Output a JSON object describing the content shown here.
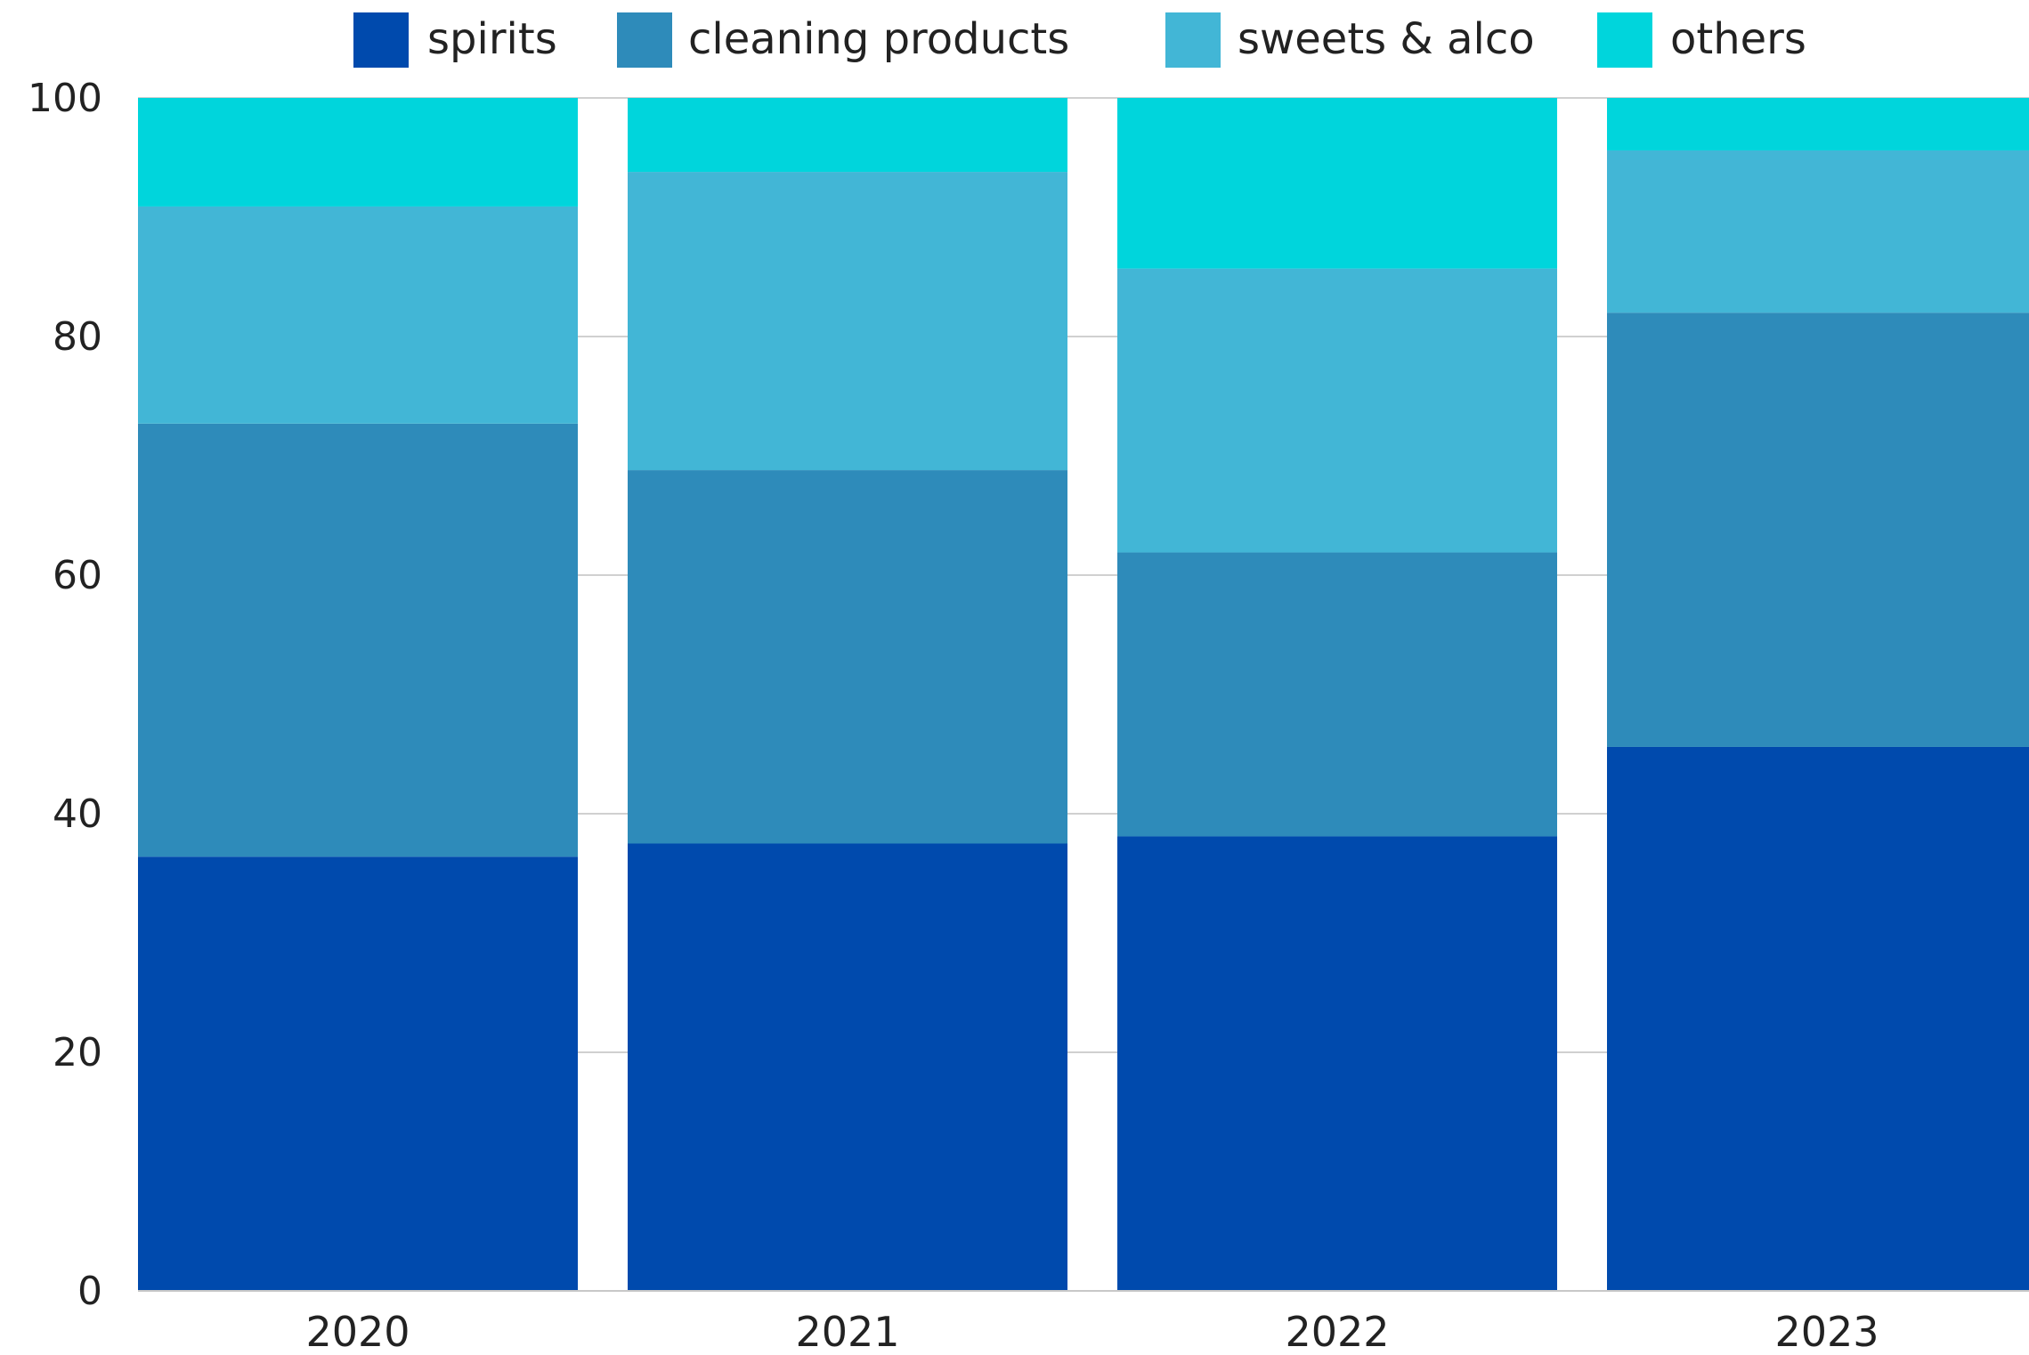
{
  "chart_data": {
    "type": "bar",
    "stacked": true,
    "categories": [
      "2020",
      "2021",
      "2022",
      "2023"
    ],
    "series": [
      {
        "name": "spirits",
        "color": "#004aad",
        "values": [
          36.4,
          37.5,
          38.1,
          45.6
        ]
      },
      {
        "name": "cleaning products",
        "color": "#2e8bba",
        "values": [
          36.3,
          31.3,
          23.8,
          36.4
        ]
      },
      {
        "name": "sweets & alco",
        "color": "#42b6d6",
        "values": [
          18.2,
          25.0,
          23.8,
          13.6
        ]
      },
      {
        "name": "others",
        "color": "#00d5dc",
        "values": [
          9.1,
          6.2,
          14.3,
          4.4
        ]
      }
    ],
    "ylim": [
      0,
      100
    ],
    "yticks": [
      "0",
      "20",
      "40",
      "60",
      "80",
      "100"
    ],
    "grid": true,
    "gridlines_color": "#d0d0d0",
    "legend_position": "top",
    "title": "",
    "xlabel": "",
    "ylabel": ""
  }
}
